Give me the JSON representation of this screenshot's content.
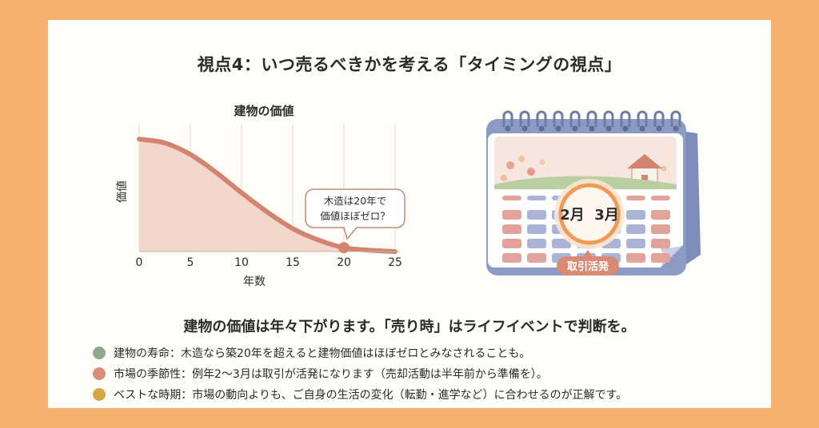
{
  "title": "視点4：いつ売るべきかを考える「タイミングの視点」",
  "chart_data": {
    "type": "area",
    "title": "建物の価値",
    "xlabel": "年数",
    "ylabel": "価値",
    "x_ticks": [
      0,
      5,
      10,
      15,
      20,
      25
    ],
    "xlim": [
      0,
      25
    ],
    "ylim": [
      0,
      100
    ],
    "x": [
      0,
      2.5,
      5,
      7.5,
      10,
      12.5,
      15,
      17.5,
      20,
      22.5,
      25
    ],
    "values": [
      88,
      85,
      76,
      62,
      46,
      31,
      18,
      9,
      3,
      1,
      0
    ],
    "grid": "vertical",
    "annotation": {
      "text_line1": "木造は20年で",
      "text_line2": "価値ほぼゼロ？",
      "x": 20
    },
    "colors": {
      "line": "#D2846F",
      "fill": "#F3D7CD",
      "grid": "#E6D8D2"
    }
  },
  "calendar": {
    "highlight": "2月  3月",
    "badge": "取引活発",
    "colors": {
      "frame": "#8C9BC4",
      "page": "#FFFFFF",
      "cell_blue": "#A9B4D6",
      "cell_red": "#E2A49A",
      "ring": "#F29A56",
      "badge": "#D98A74"
    }
  },
  "summary": "建物の価値は年々下がります。「売り時」はライフイベントで判断を。",
  "bullets": [
    {
      "text": "建物の寿命：木造なら築20年を超えると建物価値はほぼゼロとみなされることも。",
      "color": "#8FA98A"
    },
    {
      "text": "市場の季節性：例年2〜3月は取引が活発になります（売却活動は半年前から準備を）。",
      "color": "#D78F7C"
    },
    {
      "text": "ベストな時期：市場の動向よりも、ご自身の生活の変化（転勤・進学など）に合わせるのが正解です。",
      "color": "#D7A64B"
    }
  ]
}
